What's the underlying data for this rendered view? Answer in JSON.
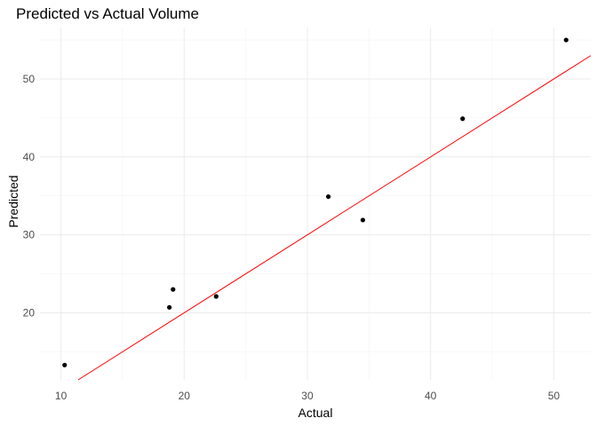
{
  "chart_data": {
    "type": "scatter",
    "title": "Predicted vs Actual Volume",
    "xlabel": "Actual",
    "ylabel": "Predicted",
    "xlim": [
      8.3,
      53.0
    ],
    "ylim": [
      11.4,
      56.6
    ],
    "xticks": [
      10,
      20,
      30,
      40,
      50
    ],
    "yticks": [
      20,
      30,
      40,
      50
    ],
    "grid": true,
    "points": [
      {
        "x": 10.3,
        "y": 13.3
      },
      {
        "x": 18.8,
        "y": 20.7
      },
      {
        "x": 19.1,
        "y": 23.0
      },
      {
        "x": 22.6,
        "y": 22.1
      },
      {
        "x": 31.7,
        "y": 34.9
      },
      {
        "x": 34.5,
        "y": 31.9
      },
      {
        "x": 42.6,
        "y": 44.9
      },
      {
        "x": 51.0,
        "y": 55.0
      }
    ],
    "reference_line": {
      "slope": 1,
      "intercept": 0,
      "color": "#ff0000"
    }
  }
}
